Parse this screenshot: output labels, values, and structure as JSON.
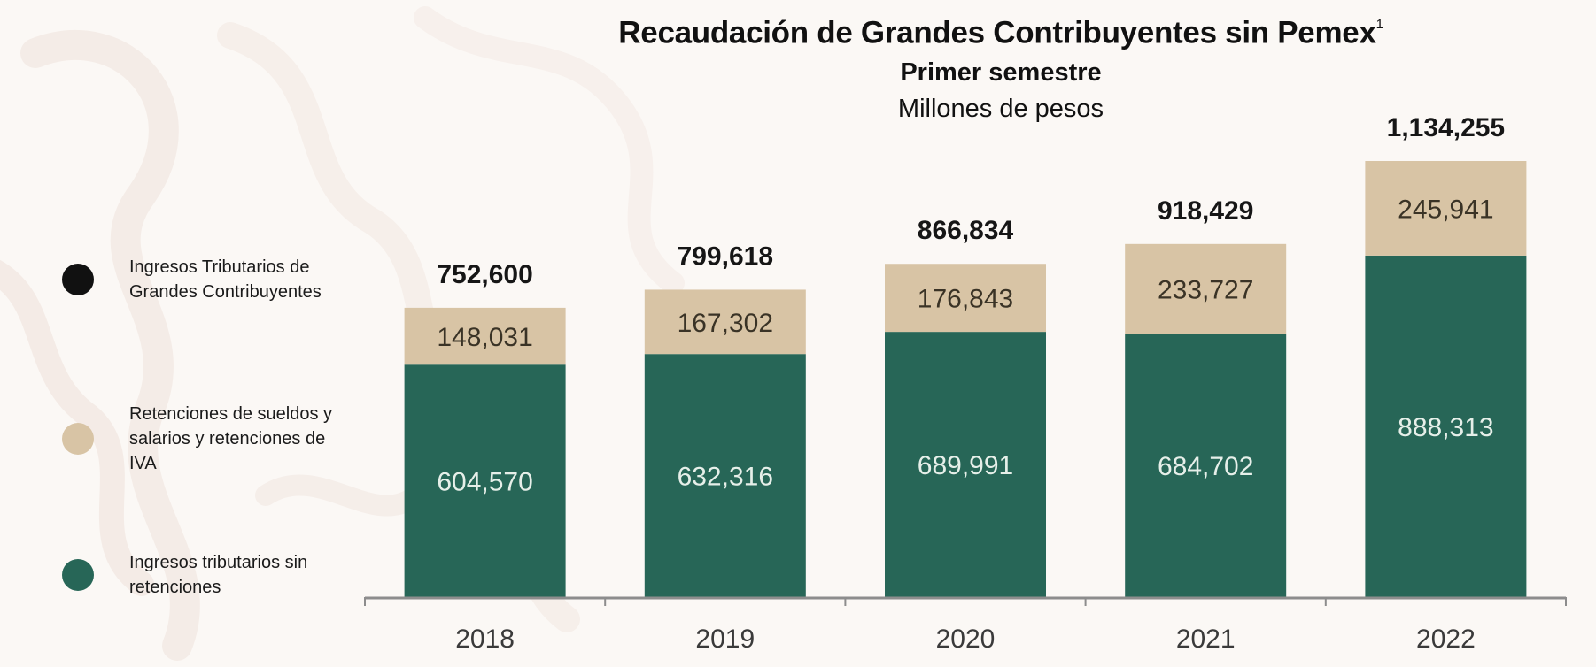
{
  "title": "Recaudación de Grandes Contribuyentes sin Pemex",
  "title_footnote": "1",
  "subtitle": "Primer semestre",
  "units": "Millones de pesos",
  "legend": [
    {
      "label": "Ingresos Tributarios de Grandes Contribuyentes",
      "color": "#111111"
    },
    {
      "label": "Retenciones de sueldos y salarios y retenciones de IVA",
      "color": "#d8c4a5"
    },
    {
      "label": "Ingresos tributarios sin retenciones",
      "color": "#276657"
    }
  ],
  "chart_data": {
    "type": "bar",
    "stacked": true,
    "categories": [
      "2018",
      "2019",
      "2020",
      "2021",
      "2022"
    ],
    "series": [
      {
        "name": "Ingresos tributarios sin retenciones",
        "values": [
          604570,
          632316,
          689991,
          684702,
          888313
        ],
        "labels": [
          "604,570",
          "632,316",
          "689,991",
          "684,702",
          "888,313"
        ],
        "color": "#276657",
        "label_color": "#e6efe9"
      },
      {
        "name": "Retenciones de sueldos y salarios y retenciones de IVA",
        "values": [
          148031,
          167302,
          176843,
          233727,
          245941
        ],
        "labels": [
          "148,031",
          "167,302",
          "176,843",
          "233,727",
          "245,941"
        ],
        "color": "#d8c4a5",
        "label_color": "#3a3326"
      }
    ],
    "totals": {
      "name": "Ingresos Tributarios de Grandes Contribuyentes",
      "values": [
        752600,
        799618,
        866834,
        918429,
        1134255
      ],
      "labels": [
        "752,600",
        "799,618",
        "866,834",
        "918,429",
        "1,134,255"
      ]
    },
    "ylim": [
      0,
      1134255
    ],
    "grid": false,
    "legend_position": "left"
  }
}
